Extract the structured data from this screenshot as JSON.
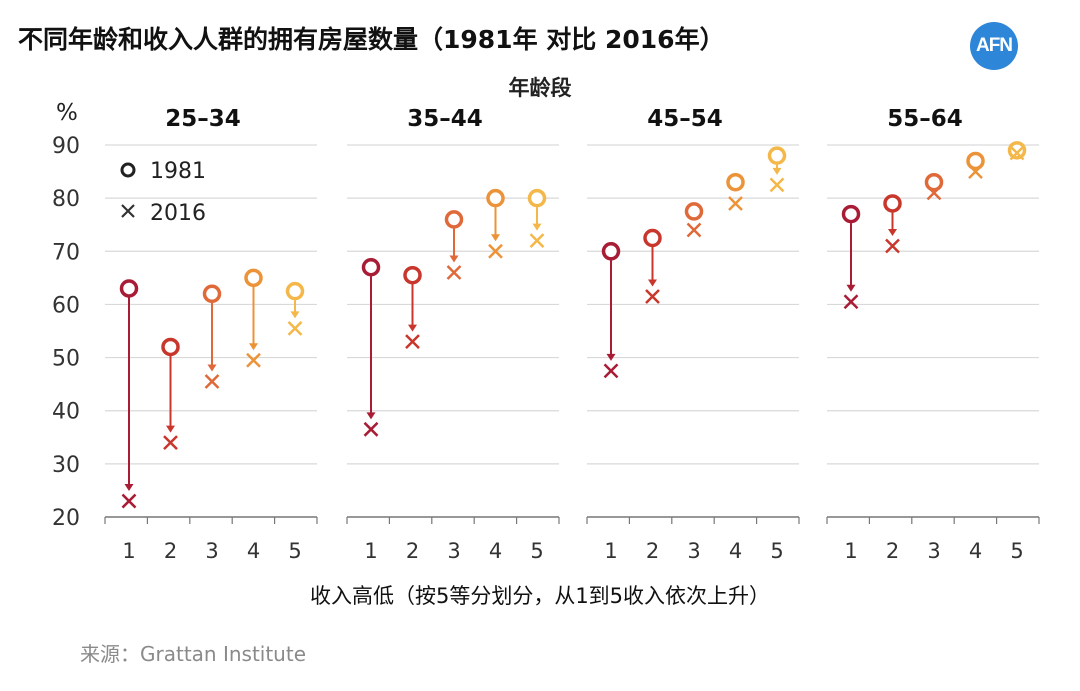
{
  "title": "不同年龄和收入人群的拥有房屋数量（1981年 对比 2016年）",
  "logo_text": "AFN",
  "source": "来源：Grattan Institute",
  "chart_data": {
    "type": "scatter",
    "group_axis_label": "年龄段",
    "xlabel": "收入高低（按5等分划分，从1到5收入依次上升）",
    "ylabel": "%",
    "ylim": [
      20,
      90
    ],
    "yticks": [
      20,
      30,
      40,
      50,
      60,
      70,
      80,
      90
    ],
    "categories": [
      "1",
      "2",
      "3",
      "4",
      "5"
    ],
    "legend": [
      {
        "name": "1981",
        "marker": "circle"
      },
      {
        "name": "2016",
        "marker": "x"
      }
    ],
    "legend_position": "top-left",
    "grid": true,
    "quintile_colors": [
      "#a81d35",
      "#c8362c",
      "#e0693a",
      "#ec9338",
      "#f4b84a"
    ],
    "panels": [
      {
        "group": "25–34",
        "values_1981": [
          63,
          52,
          62,
          65,
          62.5
        ],
        "values_2016": [
          23,
          34,
          45.5,
          49.5,
          55.5
        ]
      },
      {
        "group": "35–44",
        "values_1981": [
          67,
          65.5,
          76,
          80,
          80
        ],
        "values_2016": [
          36.5,
          53,
          66,
          70,
          72
        ]
      },
      {
        "group": "45–54",
        "values_1981": [
          70,
          72.5,
          77.5,
          83,
          88
        ],
        "values_2016": [
          47.5,
          61.5,
          74,
          79,
          82.5
        ]
      },
      {
        "group": "55–64",
        "values_1981": [
          77,
          79,
          83,
          87,
          89
        ],
        "values_2016": [
          60.5,
          71,
          81,
          85,
          88.5
        ]
      }
    ]
  }
}
